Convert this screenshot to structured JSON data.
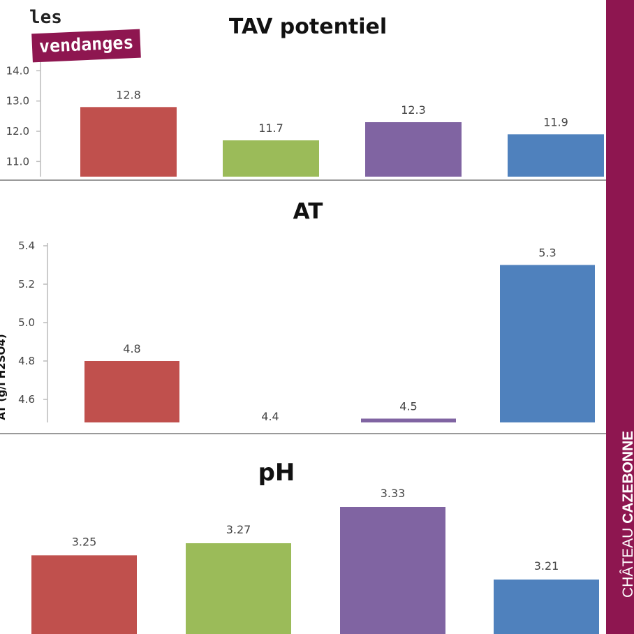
{
  "logo": {
    "line1": "les",
    "line2": "vendanges"
  },
  "brand": {
    "light": "CHÂTEAU ",
    "bold": "CAZEBONNE"
  },
  "colors": {
    "red": "#c0504d",
    "green": "#9bbb59",
    "purple": "#8064a2",
    "blue": "#4f81bd",
    "brand": "#8e1650"
  },
  "chart_data": [
    {
      "type": "bar",
      "title": "TAV potentiel",
      "ylabel": "",
      "ylim": [
        10.5,
        14.4
      ],
      "yticks": [
        "14.0",
        "13.0",
        "12.0",
        "11.0"
      ],
      "values": [
        12.8,
        11.7,
        12.3,
        11.9
      ],
      "labels": [
        "12.8",
        "11.7",
        "12.3",
        "11.9"
      ]
    },
    {
      "type": "bar",
      "title": "AT",
      "ylabel": "AT (g/l H2SO4)",
      "ylim": [
        4.48,
        5.4
      ],
      "yticks": [
        "5.4",
        "5.2",
        "5.0",
        "4.8",
        "4.6"
      ],
      "values": [
        4.8,
        4.4,
        4.5,
        5.3
      ],
      "labels": [
        "4.8",
        "4.4",
        "4.5",
        "5.3"
      ]
    },
    {
      "type": "bar",
      "title": "pH",
      "ylabel": "",
      "ylim": [
        3.12,
        3.36
      ],
      "yticks": [],
      "values": [
        3.25,
        3.27,
        3.33,
        3.21
      ],
      "labels": [
        "3.25",
        "3.27",
        "3.33",
        "3.21"
      ]
    }
  ]
}
